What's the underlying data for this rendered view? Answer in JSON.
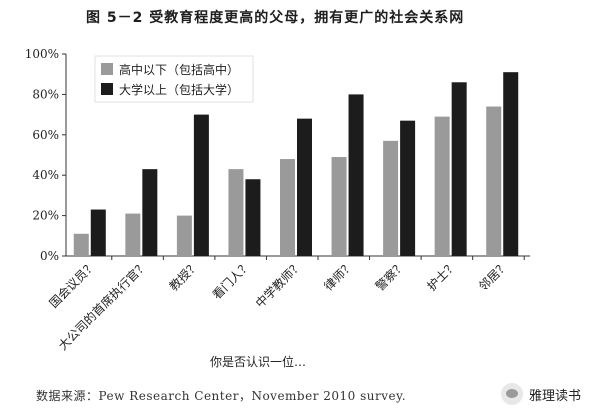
{
  "figure_title": "图 5－2  受教育程度更高的父母，拥有更广的社会关系网",
  "source_note": "数据来源：Pew Research Center，November 2010 survey.",
  "watermark_text": "雅理读书",
  "chart_data": {
    "type": "bar",
    "xlabel": "你是否认识一位…",
    "ylabel": "",
    "ylim": [
      0,
      100
    ],
    "yticks": [
      "0%",
      "20%",
      "40%",
      "60%",
      "80%",
      "100%"
    ],
    "ytick_values": [
      0,
      20,
      40,
      60,
      80,
      100
    ],
    "grid": false,
    "legend_position": "top-left",
    "categories": [
      "国会议员？",
      "大公司的首席执行官？",
      "教授？",
      "看门人？",
      "中学教师？",
      "律师？",
      "警察？",
      "护士？",
      "邻居？"
    ],
    "series": [
      {
        "name": "高中以下（包括高中）",
        "color": "#9a9a9a",
        "values": [
          11,
          21,
          20,
          43,
          48,
          49,
          57,
          69,
          74
        ]
      },
      {
        "name": "大学以上（包括大学）",
        "color": "#1c1c1c",
        "values": [
          23,
          43,
          70,
          38,
          68,
          80,
          67,
          86,
          91
        ]
      }
    ]
  }
}
